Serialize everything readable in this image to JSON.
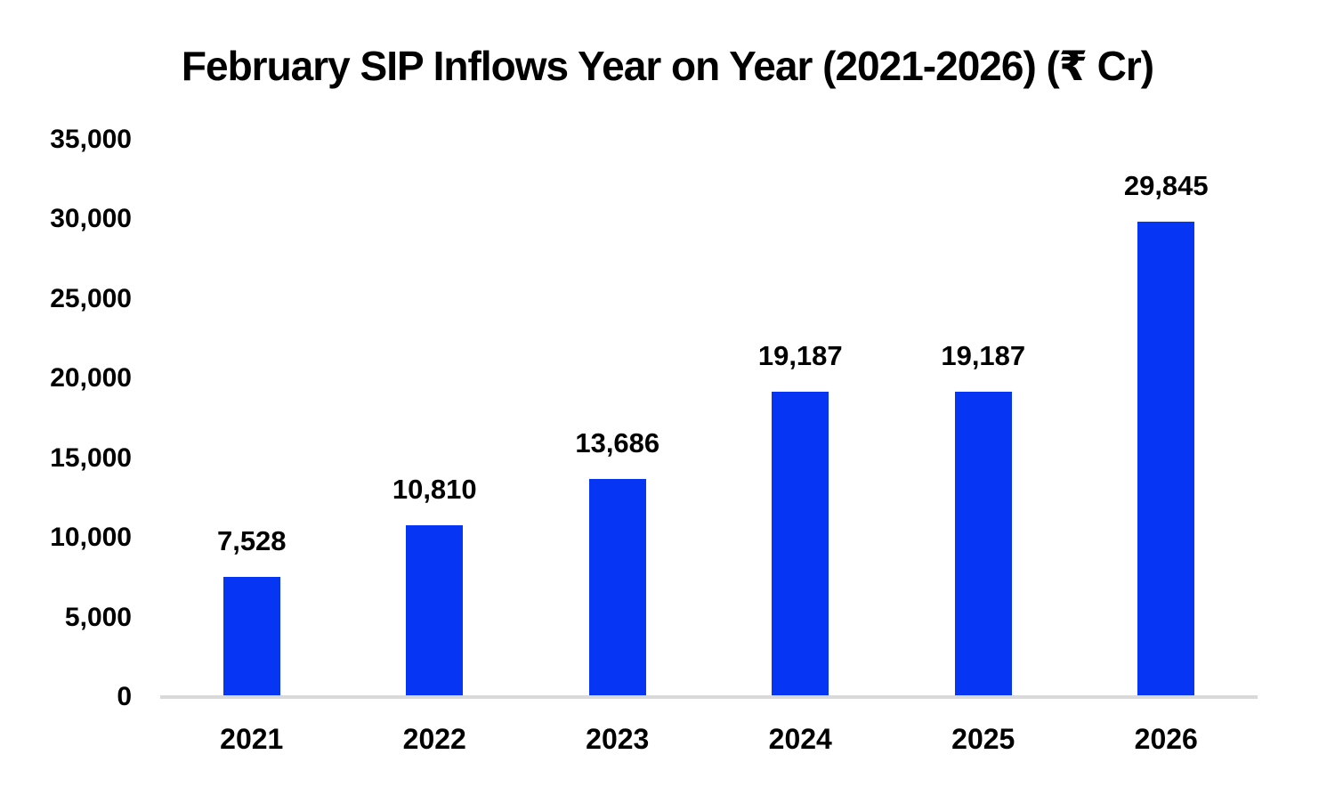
{
  "page": {
    "background_color": "#ffffff",
    "text_color": "#000000"
  },
  "chart_data": {
    "type": "bar",
    "title": "February SIP Inflows Year on Year (2021-2026) (₹ Cr)",
    "xlabel": "",
    "ylabel": "",
    "categories": [
      "2021",
      "2022",
      "2023",
      "2024",
      "2025",
      "2026"
    ],
    "values": [
      7528,
      10810,
      13686,
      19187,
      19187,
      29845
    ],
    "value_labels": [
      "7,528",
      "10,810",
      "13,686",
      "19,187",
      "19,187",
      "29,845"
    ],
    "ylim": [
      0,
      35000
    ],
    "yticks": [
      0,
      5000,
      10000,
      15000,
      20000,
      25000,
      30000,
      35000
    ],
    "ytick_labels": [
      "0",
      "5,000",
      "10,000",
      "15,000",
      "20,000",
      "25,000",
      "30,000",
      "35,000"
    ],
    "grid": false,
    "legend_position": "none",
    "bar_color": "#0636F3",
    "axis_line_color": "#D9D9D9",
    "label_color": "#000000"
  }
}
